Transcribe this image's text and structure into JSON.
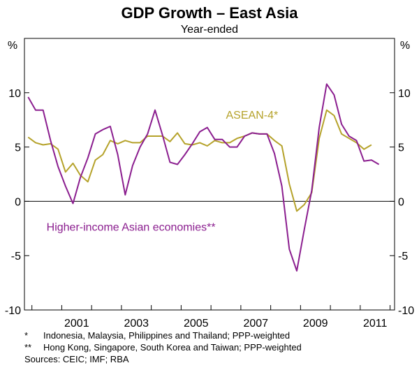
{
  "chart_data": {
    "type": "line",
    "title": "GDP Growth – East Asia",
    "subtitle": "Year-ended",
    "unit_left": "%",
    "unit_right": "%",
    "ylim": [
      -10,
      15
    ],
    "yticks": [
      -10,
      -5,
      0,
      5,
      10
    ],
    "xlim": [
      1999.75,
      2012.15
    ],
    "xticks": [
      2001,
      2003,
      2005,
      2007,
      2009,
      2011
    ],
    "grid": false,
    "zero_line": true,
    "series": [
      {
        "name": "ASEAN-4*",
        "color": "#b5a22a",
        "x": [
          1999.875,
          2000.125,
          2000.375,
          2000.625,
          2000.875,
          2001.125,
          2001.375,
          2001.625,
          2001.875,
          2002.125,
          2002.375,
          2002.625,
          2002.875,
          2003.125,
          2003.375,
          2003.625,
          2003.875,
          2004.125,
          2004.375,
          2004.625,
          2004.875,
          2005.125,
          2005.375,
          2005.625,
          2005.875,
          2006.125,
          2006.375,
          2006.625,
          2006.875,
          2007.125,
          2007.375,
          2007.625,
          2007.875,
          2008.125,
          2008.375,
          2008.625,
          2008.875,
          2009.125,
          2009.375,
          2009.625,
          2009.875,
          2010.125,
          2010.375,
          2010.625,
          2010.875,
          2011.125,
          2011.375
        ],
        "values": [
          5.9,
          5.4,
          5.2,
          5.3,
          4.8,
          2.7,
          3.5,
          2.4,
          1.8,
          3.8,
          4.3,
          5.6,
          5.3,
          5.6,
          5.4,
          5.4,
          6.0,
          6.0,
          6.0,
          5.5,
          6.3,
          5.3,
          5.2,
          5.4,
          5.1,
          5.6,
          5.4,
          5.4,
          5.8,
          6.0,
          6.3,
          6.2,
          6.2,
          5.6,
          5.1,
          1.6,
          -0.9,
          -0.3,
          0.8,
          5.8,
          8.4,
          7.9,
          6.2,
          5.8,
          5.4,
          4.8,
          5.2
        ]
      },
      {
        "name": "Higher-income Asian economies**",
        "color": "#8b1e8f",
        "x": [
          1999.875,
          2000.125,
          2000.375,
          2000.625,
          2000.875,
          2001.125,
          2001.375,
          2001.625,
          2001.875,
          2002.125,
          2002.375,
          2002.625,
          2002.875,
          2003.125,
          2003.375,
          2003.625,
          2003.875,
          2004.125,
          2004.375,
          2004.625,
          2004.875,
          2005.125,
          2005.375,
          2005.625,
          2005.875,
          2006.125,
          2006.375,
          2006.625,
          2006.875,
          2007.125,
          2007.375,
          2007.625,
          2007.875,
          2008.125,
          2008.375,
          2008.625,
          2008.875,
          2009.125,
          2009.375,
          2009.625,
          2009.875,
          2010.125,
          2010.375,
          2010.625,
          2010.875,
          2011.125,
          2011.375,
          2011.625
        ],
        "values": [
          9.6,
          8.4,
          8.4,
          5.6,
          3.2,
          1.4,
          -0.2,
          2.2,
          4.0,
          6.2,
          6.6,
          6.9,
          4.3,
          0.6,
          3.3,
          5.0,
          6.2,
          8.4,
          6.1,
          3.6,
          3.4,
          4.3,
          5.3,
          6.4,
          6.8,
          5.7,
          5.7,
          5.0,
          5.0,
          6.0,
          6.3,
          6.2,
          6.2,
          4.4,
          1.4,
          -4.4,
          -6.4,
          -2.6,
          1.0,
          6.8,
          10.8,
          9.8,
          7.1,
          6.0,
          5.6,
          3.7,
          3.8,
          3.4
        ]
      }
    ],
    "annotations": [
      {
        "series": 0,
        "text": "ASEAN-4*"
      },
      {
        "series": 1,
        "text": "Higher-income Asian economies**"
      }
    ]
  },
  "footnotes": [
    {
      "mark": "*",
      "text": "Indonesia, Malaysia, Philippines and Thailand; PPP-weighted"
    },
    {
      "mark": "**",
      "text": "Hong Kong, Singapore, South Korea and Taiwan; PPP-weighted"
    }
  ],
  "sources": "Sources: CEIC; IMF; RBA"
}
